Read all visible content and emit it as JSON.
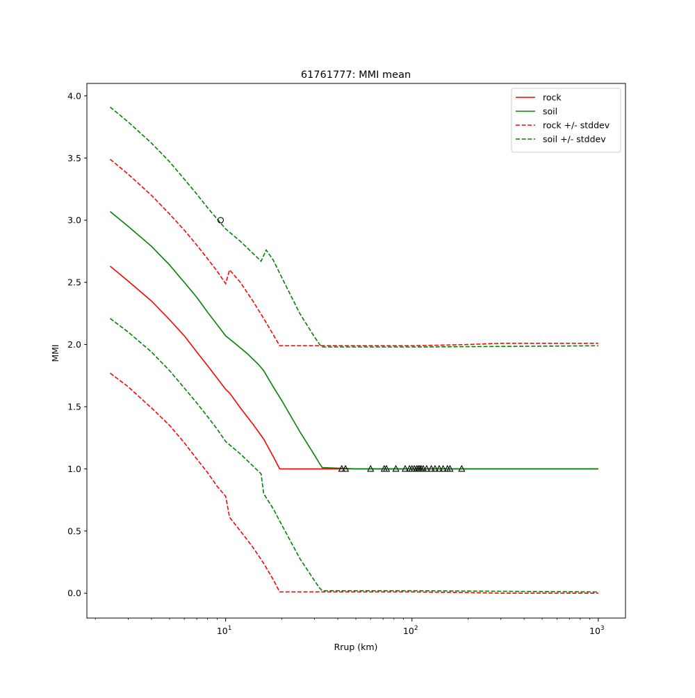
{
  "chart_data": {
    "type": "line",
    "title": "61761777: MMI mean",
    "xlabel": "Rrup (km)",
    "ylabel": "MMI",
    "xscale": "log",
    "xlim": [
      1.8,
      1400
    ],
    "ylim": [
      -0.2,
      4.1
    ],
    "x_ticks": [
      {
        "value": 10,
        "base": "10",
        "exp": "1"
      },
      {
        "value": 100,
        "base": "10",
        "exp": "2"
      },
      {
        "value": 1000,
        "base": "10",
        "exp": "3"
      }
    ],
    "y_ticks": [
      0.0,
      0.5,
      1.0,
      1.5,
      2.0,
      2.5,
      3.0,
      3.5,
      4.0
    ],
    "y_tick_labels": [
      "0.0",
      "0.5",
      "1.0",
      "1.5",
      "2.0",
      "2.5",
      "3.0",
      "3.5",
      "4.0"
    ],
    "grid": false,
    "legend_position": "top-right",
    "series": [
      {
        "name": "rock",
        "color": "#ff0000",
        "style": "solid",
        "x": [
          2.4,
          3,
          4,
          5,
          6,
          7,
          8,
          9,
          10,
          10.5,
          12,
          14,
          16,
          18,
          19.5,
          25,
          33,
          50,
          100,
          300,
          1000
        ],
        "y": [
          2.63,
          2.51,
          2.35,
          2.2,
          2.07,
          1.94,
          1.83,
          1.73,
          1.64,
          1.61,
          1.49,
          1.36,
          1.24,
          1.1,
          1.0,
          1.0,
          1.0,
          1.0,
          1.0,
          1.0,
          1.0
        ]
      },
      {
        "name": "soil",
        "color": "#008000",
        "style": "solid",
        "x": [
          2.4,
          3,
          4,
          5,
          6,
          7,
          8,
          9,
          10,
          11,
          13,
          15,
          16,
          18,
          20,
          25,
          30,
          32,
          33,
          50,
          100,
          300,
          1000
        ],
        "y": [
          3.07,
          2.95,
          2.79,
          2.64,
          2.5,
          2.38,
          2.26,
          2.16,
          2.07,
          2.02,
          1.93,
          1.84,
          1.79,
          1.66,
          1.55,
          1.3,
          1.11,
          1.04,
          1.01,
          1.0,
          1.0,
          1.0,
          1.0
        ]
      },
      {
        "name": "rock +/- stddev",
        "color": "#ff0000",
        "style": "dashed",
        "x": [
          2.4,
          3,
          4,
          5,
          6,
          7,
          8,
          9,
          10,
          10.5,
          12,
          14,
          16,
          18,
          19.5,
          50,
          100,
          200,
          300,
          1000
        ],
        "y": [
          3.49,
          3.37,
          3.2,
          3.05,
          2.92,
          2.8,
          2.69,
          2.59,
          2.49,
          2.6,
          2.5,
          2.35,
          2.21,
          2.08,
          1.99,
          1.99,
          1.99,
          2.0,
          2.01,
          2.01
        ]
      },
      {
        "name": "",
        "color": "#ff0000",
        "style": "dashed",
        "x": [
          2.4,
          3,
          4,
          5,
          6,
          7,
          8,
          9,
          10,
          10.5,
          12,
          14,
          16,
          18,
          19.5,
          50,
          100,
          200,
          300,
          1000
        ],
        "y": [
          1.77,
          1.66,
          1.49,
          1.35,
          1.21,
          1.08,
          0.97,
          0.86,
          0.78,
          0.61,
          0.5,
          0.37,
          0.24,
          0.11,
          0.01,
          0.01,
          0.01,
          0.005,
          0.0,
          0.0
        ]
      },
      {
        "name": "soil +/- stddev",
        "color": "#008000",
        "style": "dashed",
        "x": [
          2.4,
          3,
          4,
          5,
          6,
          7,
          8,
          9,
          10,
          12,
          15.5,
          16.5,
          18,
          20,
          25,
          30,
          32,
          33,
          50,
          100,
          1000
        ],
        "y": [
          3.91,
          3.79,
          3.62,
          3.47,
          3.33,
          3.21,
          3.1,
          3.01,
          2.93,
          2.83,
          2.67,
          2.76,
          2.68,
          2.54,
          2.25,
          2.06,
          2.0,
          1.98,
          1.98,
          1.98,
          1.99
        ]
      },
      {
        "name": "",
        "color": "#008000",
        "style": "dashed",
        "x": [
          2.4,
          3,
          4,
          5,
          6,
          7,
          8,
          9,
          10,
          12,
          15.5,
          16,
          18,
          20,
          25,
          30,
          32,
          33,
          50,
          100,
          1000
        ],
        "y": [
          2.21,
          2.1,
          1.94,
          1.79,
          1.65,
          1.53,
          1.42,
          1.32,
          1.22,
          1.12,
          0.96,
          0.8,
          0.68,
          0.55,
          0.28,
          0.1,
          0.04,
          0.02,
          0.02,
          0.02,
          0.01
        ]
      }
    ],
    "markers": [
      {
        "shape": "circle",
        "x": [
          9.4
        ],
        "y": [
          3.0
        ]
      },
      {
        "shape": "triangle",
        "x": [
          42,
          44,
          60,
          71,
          73,
          82,
          92,
          97,
          100,
          103,
          106,
          108,
          110,
          112,
          115,
          120,
          127,
          133,
          140,
          147,
          155,
          160,
          185
        ],
        "y": [
          1.0,
          1.0,
          1.0,
          1.0,
          1.0,
          1.0,
          1.0,
          1.0,
          1.0,
          1.0,
          1.0,
          1.0,
          1.0,
          1.0,
          1.0,
          1.0,
          1.0,
          1.0,
          1.0,
          1.0,
          1.0,
          1.0,
          1.0
        ]
      }
    ]
  }
}
